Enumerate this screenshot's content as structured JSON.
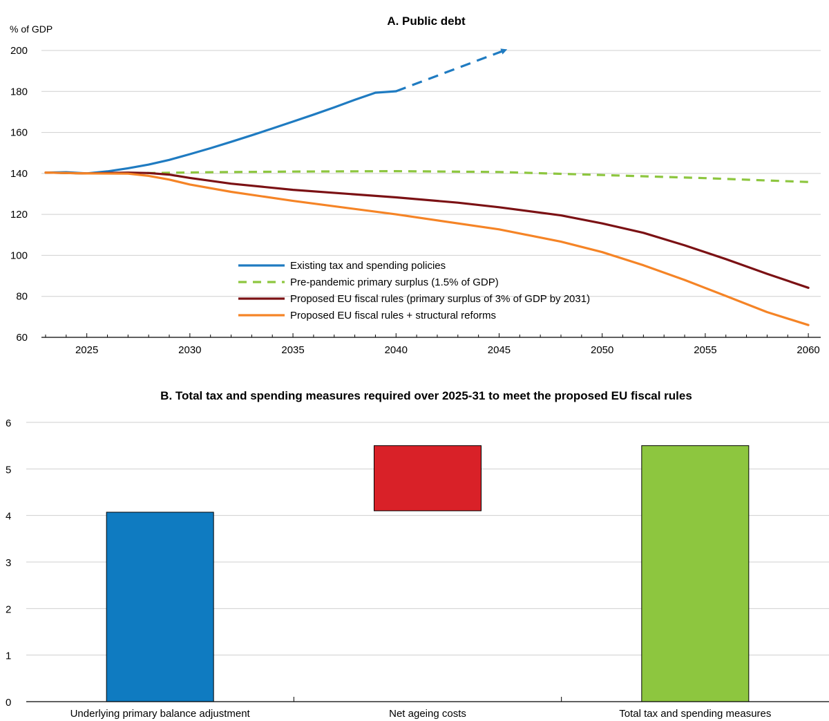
{
  "chart_data": [
    {
      "type": "line",
      "title": "A. Public debt",
      "ylabel": "% of GDP",
      "ylim": [
        60,
        200
      ],
      "yticks": [
        60,
        80,
        100,
        120,
        140,
        160,
        180,
        200
      ],
      "xlim": [
        2022.8,
        2060.6
      ],
      "xticks": [
        2025,
        2030,
        2035,
        2040,
        2045,
        2050,
        2055,
        2060
      ],
      "grid": "horizontal",
      "legend_position": "lower-center",
      "series": [
        {
          "name": "Existing tax and spending policies",
          "color": "#1f7bc1",
          "style": "solid",
          "x": [
            2023,
            2024,
            2025,
            2026,
            2027,
            2028,
            2029,
            2030,
            2031,
            2032,
            2033,
            2034,
            2035,
            2036,
            2037,
            2038,
            2039,
            2040
          ],
          "y": [
            140.4,
            140.6,
            140.0,
            141.0,
            142.5,
            144.3,
            146.6,
            149.4,
            152.3,
            155.4,
            158.6,
            161.9,
            165.3,
            168.7,
            172.2,
            175.9,
            179.4,
            180.1
          ],
          "projection": {
            "x": [
              2040,
              2045.3
            ],
            "y": [
              180.1,
              200.2
            ],
            "style": "dashed-arrow"
          }
        },
        {
          "name": "Pre-pandemic primary surplus (1.5% of GDP)",
          "color": "#8dc63f",
          "style": "dashed",
          "x": [
            2023,
            2025,
            2028,
            2031,
            2035,
            2040,
            2045,
            2050,
            2055,
            2060
          ],
          "y": [
            140.4,
            140.0,
            140.2,
            140.6,
            140.9,
            141.1,
            140.7,
            139.2,
            137.7,
            135.8
          ]
        },
        {
          "name": "Proposed EU fiscal rules (primary surplus of 3% of GDP by 2031)",
          "color": "#7b1114",
          "style": "solid",
          "x": [
            2023,
            2025,
            2027,
            2028,
            2029,
            2030,
            2032,
            2035,
            2040,
            2043,
            2045,
            2048,
            2050,
            2052,
            2054,
            2056,
            2058,
            2060
          ],
          "y": [
            140.4,
            140.0,
            140.4,
            140.2,
            139.4,
            137.8,
            135.0,
            132.0,
            128.3,
            125.7,
            123.5,
            119.5,
            115.6,
            111.0,
            104.9,
            98.2,
            91.0,
            84.2
          ]
        },
        {
          "name": "Proposed EU fiscal rules + structural reforms",
          "color": "#f58426",
          "style": "solid",
          "x": [
            2023,
            2025,
            2027,
            2028,
            2029,
            2030,
            2032,
            2035,
            2040,
            2045,
            2048,
            2050,
            2052,
            2054,
            2056,
            2058,
            2060
          ],
          "y": [
            140.4,
            140.0,
            139.9,
            138.8,
            137.0,
            134.6,
            131.0,
            126.6,
            120.0,
            112.7,
            106.7,
            101.6,
            95.2,
            88.0,
            80.2,
            72.3,
            66.0
          ]
        }
      ]
    },
    {
      "type": "bar",
      "title": "B. Total tax and spending measures required over 2025-31 to meet the proposed EU fiscal rules",
      "ylim": [
        0,
        6
      ],
      "yticks": [
        0,
        1,
        2,
        3,
        4,
        5,
        6
      ],
      "grid": "horizontal",
      "categories": [
        "Underlying primary balance adjustment",
        "Net ageing costs",
        "Total tax and spending measures"
      ],
      "bars": [
        {
          "category": "Underlying primary balance adjustment",
          "start": 0,
          "end": 4.07,
          "color": "#0f7bc1"
        },
        {
          "category": "Net ageing costs",
          "start": 4.1,
          "end": 5.5,
          "color": "#d92128"
        },
        {
          "category": "Total tax and spending measures",
          "start": 0,
          "end": 5.5,
          "color": "#8dc63f"
        }
      ]
    }
  ]
}
